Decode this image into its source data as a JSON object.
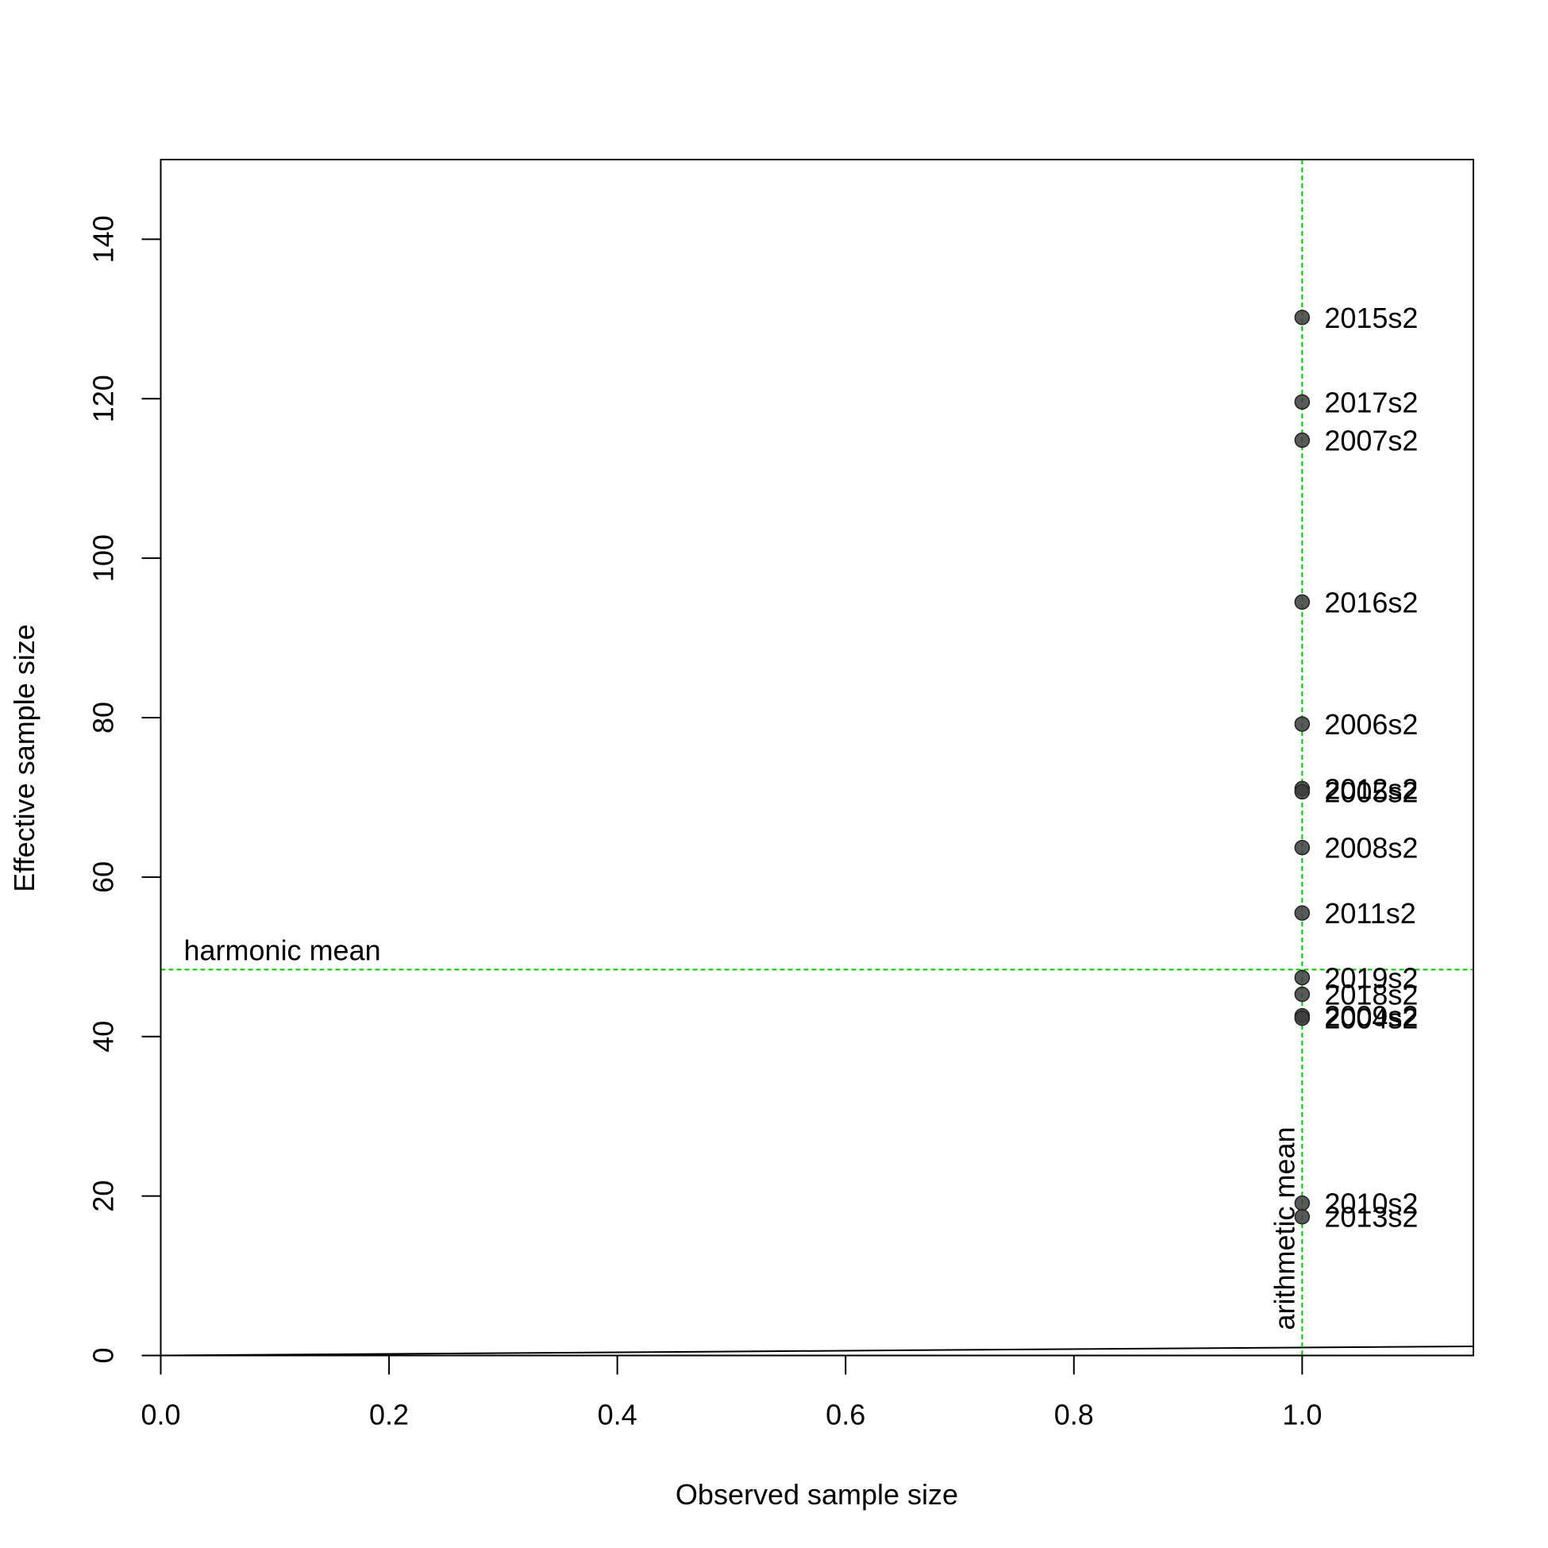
{
  "chart_data": {
    "type": "scatter",
    "x_label": "Observed sample size",
    "y_label": "Effective sample size",
    "x": [
      1,
      1,
      1,
      1,
      1,
      1,
      1,
      1,
      1,
      1,
      1,
      1,
      1,
      1,
      1
    ],
    "values": [
      130.2,
      119.6,
      114.8,
      94.5,
      79.2,
      71.1,
      70.7,
      63.7,
      55.5,
      47.4,
      45.3,
      42.6,
      42.3,
      19.1,
      17.4
    ],
    "point_labels": [
      "2015s2",
      "2017s2",
      "2007s2",
      "2016s2",
      "2006s2",
      "2012s2",
      "2005s2",
      "2008s2",
      "2011s2",
      "2019s2",
      "2018s2",
      "2009s2",
      "2004s2",
      "2010s2",
      "2013s2"
    ],
    "color": "#3c3c3c",
    "xlim": [
      0,
      1.15
    ],
    "ylim": [
      0,
      150
    ],
    "xticks": [
      {
        "value": 0,
        "label": "0.0"
      },
      0.2,
      0.4,
      0.6,
      0.8,
      {
        "value": 1,
        "label": "1.0"
      }
    ],
    "yticks": [
      0,
      20,
      40,
      60,
      80,
      100,
      120,
      140
    ],
    "hlines": [
      {
        "value": 48.4,
        "label": "harmonic mean",
        "color": "#00c800"
      }
    ],
    "vlines": [
      {
        "value": 1,
        "label": "arithmetic mean",
        "color": "#00c800"
      }
    ],
    "lines": [
      {
        "x": [
          0,
          1.15
        ],
        "y": [
          0,
          1.15
        ],
        "color": "#000000"
      }
    ]
  }
}
